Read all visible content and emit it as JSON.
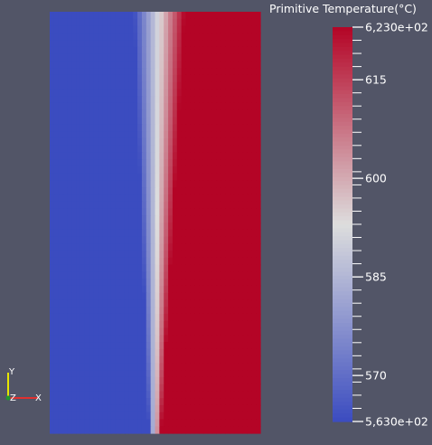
{
  "colorbar": {
    "title": "Primitive Temperature(°C)",
    "min_label": "5,630e+02",
    "max_label": "6,230e+02",
    "min_value": 563,
    "max_value": 623,
    "ticks": [
      {
        "label": "615",
        "value": 615
      },
      {
        "label": "600",
        "value": 600
      },
      {
        "label": "585",
        "value": 585
      },
      {
        "label": "570",
        "value": 570
      }
    ],
    "colors": {
      "cold": "#3b4cc0",
      "mid": "#dddddd",
      "hot": "#b40426"
    }
  },
  "axes": {
    "y": "Y",
    "z": "Z",
    "x": "X",
    "colors": {
      "x": "#e03030",
      "y": "#e6e600",
      "z": "#1f9a2f"
    }
  },
  "background_color": "#525567"
}
